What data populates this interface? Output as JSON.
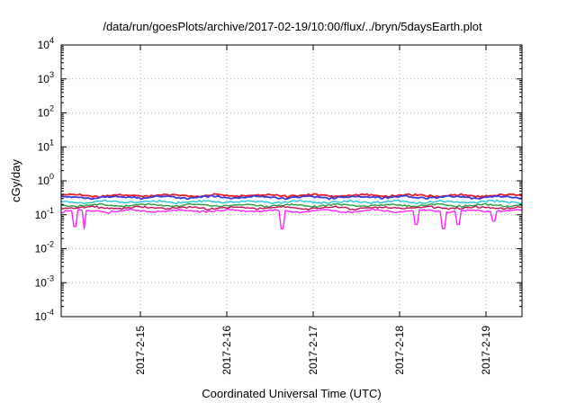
{
  "chart_data": {
    "type": "line",
    "title": "/data/run/goesPlots/archive/2017-02-19/10:00/flux/../bryn/5daysEarth.plot",
    "xlabel": "Coordinated Universal Time (UTC)",
    "ylabel": "cGy/day",
    "yscale": "log",
    "ylim": [
      0.0001,
      10000
    ],
    "y_ticks": [
      {
        "base": "10",
        "exp": "-4",
        "value": 0.0001
      },
      {
        "base": "10",
        "exp": "-3",
        "value": 0.001
      },
      {
        "base": "10",
        "exp": "-2",
        "value": 0.01
      },
      {
        "base": "10",
        "exp": "-1",
        "value": 0.1
      },
      {
        "base": "10",
        "exp": "0",
        "value": 1
      },
      {
        "base": "10",
        "exp": "1",
        "value": 10
      },
      {
        "base": "10",
        "exp": "2",
        "value": 100
      },
      {
        "base": "10",
        "exp": "3",
        "value": 1000
      },
      {
        "base": "10",
        "exp": "4",
        "value": 10000
      }
    ],
    "xlim": [
      "2017-02-14 02:00",
      "2017-02-19 10:00"
    ],
    "x_ticks": [
      {
        "label": "2017-2-15",
        "value": "2017-02-15 00:00"
      },
      {
        "label": "2017-2-16",
        "value": "2017-02-16 00:00"
      },
      {
        "label": "2017-2-17",
        "value": "2017-02-17 00:00"
      },
      {
        "label": "2017-2-18",
        "value": "2017-02-18 00:00"
      },
      {
        "label": "2017-2-19",
        "value": "2017-02-19 00:00"
      }
    ],
    "grid": true,
    "legend": "none",
    "series": [
      {
        "color": "#e8202a",
        "level": 0.37
      },
      {
        "color": "#3a3ad6",
        "level": 0.33
      },
      {
        "color": "#22c8d8",
        "level": 0.24
      },
      {
        "color": "#2aa040",
        "level": 0.19
      },
      {
        "color": "#c0105a",
        "level": 0.16
      },
      {
        "color": "#ff22ff",
        "level": 0.13
      }
    ]
  }
}
